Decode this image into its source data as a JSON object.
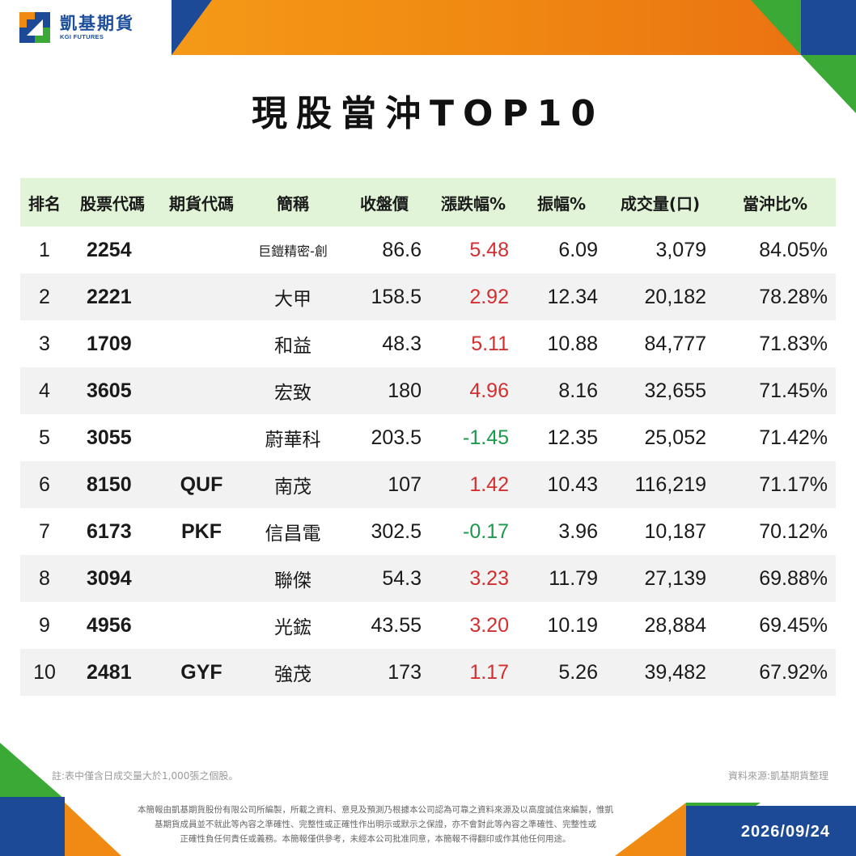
{
  "brand": {
    "name_cn": "凱基期貨",
    "name_en": "KGI FUTURES",
    "colors": {
      "blue": "#1d4a97",
      "orange": "#f08a12",
      "green": "#3aa935"
    }
  },
  "title": "現股當沖TOP10",
  "table": {
    "headers": [
      "排名",
      "股票代碼",
      "期貨代碼",
      "簡稱",
      "收盤價",
      "漲跌幅%",
      "振幅%",
      "成交量(口)",
      "當沖比%"
    ],
    "rows": [
      {
        "rank": "1",
        "code": "2254",
        "futures": "",
        "name": "巨鎧精密-創",
        "close": "86.6",
        "change": "5.48",
        "amplitude": "6.09",
        "volume": "3,079",
        "daytrade": "84.05%",
        "dir": "up"
      },
      {
        "rank": "2",
        "code": "2221",
        "futures": "",
        "name": "大甲",
        "close": "158.5",
        "change": "2.92",
        "amplitude": "12.34",
        "volume": "20,182",
        "daytrade": "78.28%",
        "dir": "up"
      },
      {
        "rank": "3",
        "code": "1709",
        "futures": "",
        "name": "和益",
        "close": "48.3",
        "change": "5.11",
        "amplitude": "10.88",
        "volume": "84,777",
        "daytrade": "71.83%",
        "dir": "up"
      },
      {
        "rank": "4",
        "code": "3605",
        "futures": "",
        "name": "宏致",
        "close": "180",
        "change": "4.96",
        "amplitude": "8.16",
        "volume": "32,655",
        "daytrade": "71.45%",
        "dir": "up"
      },
      {
        "rank": "5",
        "code": "3055",
        "futures": "",
        "name": "蔚華科",
        "close": "203.5",
        "change": "-1.45",
        "amplitude": "12.35",
        "volume": "25,052",
        "daytrade": "71.42%",
        "dir": "down"
      },
      {
        "rank": "6",
        "code": "8150",
        "futures": "QUF",
        "name": "南茂",
        "close": "107",
        "change": "1.42",
        "amplitude": "10.43",
        "volume": "116,219",
        "daytrade": "71.17%",
        "dir": "up"
      },
      {
        "rank": "7",
        "code": "6173",
        "futures": "PKF",
        "name": "信昌電",
        "close": "302.5",
        "change": "-0.17",
        "amplitude": "3.96",
        "volume": "10,187",
        "daytrade": "70.12%",
        "dir": "down"
      },
      {
        "rank": "8",
        "code": "3094",
        "futures": "",
        "name": "聯傑",
        "close": "54.3",
        "change": "3.23",
        "amplitude": "11.79",
        "volume": "27,139",
        "daytrade": "69.88%",
        "dir": "up"
      },
      {
        "rank": "9",
        "code": "4956",
        "futures": "",
        "name": "光鋐",
        "close": "43.55",
        "change": "3.20",
        "amplitude": "10.19",
        "volume": "28,884",
        "daytrade": "69.45%",
        "dir": "up"
      },
      {
        "rank": "10",
        "code": "2481",
        "futures": "GYF",
        "name": "強茂",
        "close": "173",
        "change": "1.17",
        "amplitude": "5.26",
        "volume": "39,482",
        "daytrade": "67.92%",
        "dir": "up"
      }
    ]
  },
  "footer": {
    "note": "註:表中僅含日成交量大於1,000張之個股。",
    "source": "資料來源:凱基期貨整理",
    "disclaimer": [
      "本簡報由凱基期貨股份有限公司所編製，所載之資料、意見及預測乃根據本公司認為可靠之資料來源及以高度誠信來編製，惟凱",
      "基期貨成員並不就此等內容之準確性、完整性或正確性作出明示或默示之保證，亦不會對此等內容之準確性、完整性或",
      "正確性負任何責任或義務。本簡報僅供參考，未經本公司批准同意，本簡報不得翻印或作其他任何用途。"
    ],
    "date": "2026/09/24"
  }
}
